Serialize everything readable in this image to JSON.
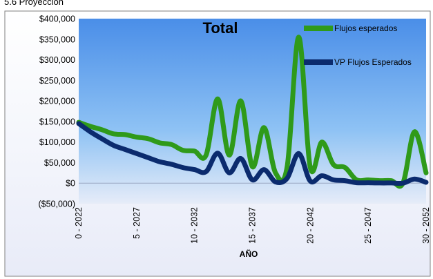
{
  "caption": "5.6     Proyección",
  "chart_data": {
    "type": "line",
    "title": "Total",
    "xlabel": "AÑO",
    "ylabel": "",
    "ylim": [
      -50000,
      400000
    ],
    "yticks": [
      400000,
      350000,
      300000,
      250000,
      200000,
      150000,
      100000,
      50000,
      0,
      -50000
    ],
    "ytick_labels": [
      "$400,000",
      "$350,000",
      "$300,000",
      "$250,000",
      "$200,000",
      "$150,000",
      "$100,000",
      "$50,000",
      "$0",
      "($50,000)"
    ],
    "x": [
      0,
      1,
      2,
      3,
      4,
      5,
      6,
      7,
      8,
      9,
      10,
      11,
      12,
      13,
      14,
      15,
      16,
      17,
      18,
      19,
      20,
      21,
      22,
      23,
      24,
      25,
      26,
      27,
      28,
      29,
      30
    ],
    "xtick_positions": [
      0,
      5,
      10,
      15,
      20,
      25,
      30
    ],
    "xtick_labels": [
      "0 - 2022",
      "5 - 2027",
      "10 - 2032",
      "15 - 2037",
      "20 - 2042",
      "25 - 2047",
      "30 - 2052"
    ],
    "gradient": [
      "#4a8ee8",
      "#8ec2f4",
      "#e6ecf8"
    ],
    "legend_position": "top-right",
    "series": [
      {
        "name": "Flujos esperados",
        "color": "#2f9a1a",
        "values": [
          148000,
          138000,
          130000,
          120000,
          118000,
          112000,
          108000,
          98000,
          94000,
          80000,
          78000,
          68000,
          205000,
          68000,
          200000,
          40000,
          135000,
          25000,
          40000,
          355000,
          38000,
          100000,
          45000,
          38000,
          8000,
          8000,
          6000,
          6000,
          0,
          125000,
          25000
        ]
      },
      {
        "name": "VP Flujos Esperados",
        "color": "#0b2b6e",
        "values": [
          145000,
          125000,
          108000,
          92000,
          82000,
          72000,
          62000,
          52000,
          46000,
          38000,
          33000,
          28000,
          73000,
          25000,
          60000,
          8000,
          33000,
          3000,
          12000,
          72000,
          5000,
          18000,
          8000,
          6000,
          1000,
          1000,
          500,
          500,
          0,
          10000,
          2000
        ]
      }
    ]
  }
}
